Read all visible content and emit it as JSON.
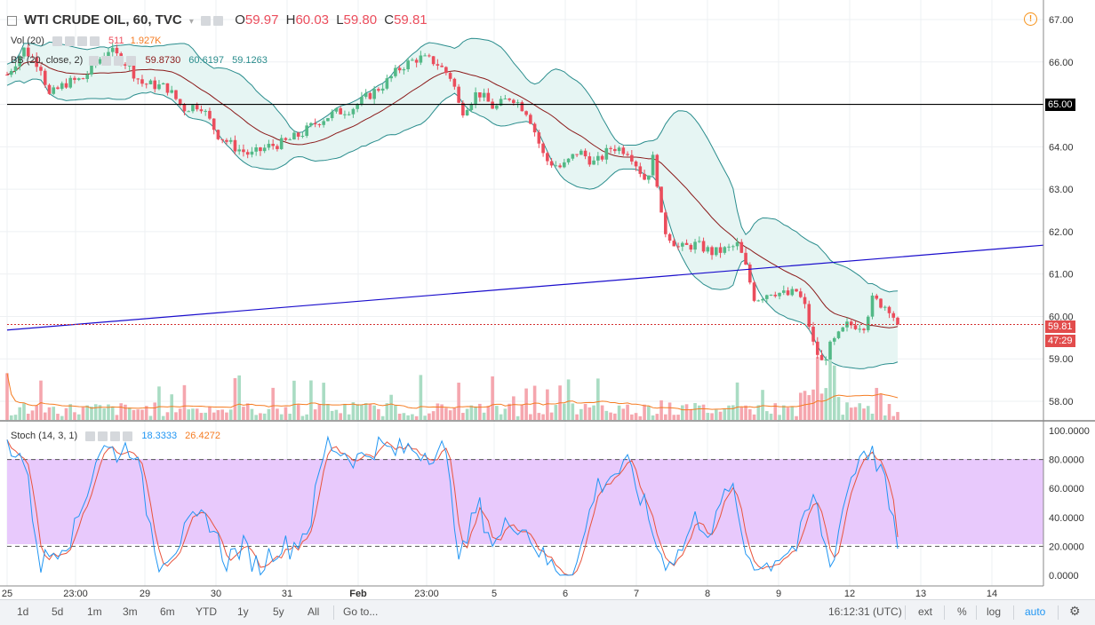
{
  "header": {
    "symbol": "WTI CRUDE OIL, 60, TVC",
    "o_label": "O",
    "o_value": "59.97",
    "h_label": "H",
    "h_value": "60.03",
    "l_label": "L",
    "l_value": "59.80",
    "c_label": "C",
    "c_value": "59.81"
  },
  "indicators": {
    "vol_label": "Vol (20)",
    "vol_value1": "511",
    "vol_value2": "1.927K",
    "bb_label": "BB (20, close, 2)",
    "bb_mid": "59.8730",
    "bb_upper": "60.6197",
    "bb_lower": "59.1263",
    "stoch_label": "Stoch (14, 3, 1)",
    "stoch_k": "18.3333",
    "stoch_d": "26.4272"
  },
  "colors": {
    "up": "#53b987",
    "down": "#eb4d5c",
    "bb_mid": "#8b1a1a",
    "bb_band": "#2a8d8d",
    "bb_fill": "#e6f5f3",
    "vol_up": "#a9dcc3",
    "vol_down": "#f5a6ae",
    "vol_ma": "#f57c22",
    "stoch_k": "#2196f3",
    "stoch_d": "#e8543d",
    "stoch_zone": "#e8c9fc",
    "trend": "#1a0dcc",
    "resistance": "#000000",
    "price_line": "#d32f2f"
  },
  "chart_data": {
    "type": "candlestick",
    "interval": "60",
    "price_axis": {
      "ticks": [
        "67.00",
        "66.00",
        "65.00",
        "64.00",
        "63.00",
        "62.00",
        "61.00",
        "60.00",
        "59.00",
        "58.00"
      ],
      "ylim": [
        57.6,
        67.2
      ]
    },
    "stoch_axis": {
      "ticks": [
        "100.0000",
        "80.0000",
        "60.0000",
        "40.0000",
        "20.0000",
        "0.0000"
      ],
      "ylim": [
        -4,
        104
      ],
      "band": [
        20,
        80
      ]
    },
    "time_axis": [
      "25",
      "23:00",
      "29",
      "30",
      "31",
      "Feb",
      "23:00",
      "5",
      "6",
      "7",
      "8",
      "9",
      "12",
      "13",
      "14"
    ],
    "last_price": "59.81",
    "countdown": "47:29",
    "horizontal_level": {
      "price": 65.0,
      "label": "65.00"
    },
    "trendline": {
      "start_price": 59.68,
      "end_price": 61.68
    },
    "close_path": [
      {
        "t": 0,
        "p": 65.7
      },
      {
        "t": 2,
        "p": 66.3
      },
      {
        "t": 4,
        "p": 65.9
      },
      {
        "t": 5,
        "p": 65.2
      },
      {
        "t": 7,
        "p": 65.5
      },
      {
        "t": 9,
        "p": 65.6
      },
      {
        "t": 12,
        "p": 66.3
      },
      {
        "t": 14,
        "p": 66.0
      },
      {
        "t": 16,
        "p": 65.5
      },
      {
        "t": 19,
        "p": 65.4
      },
      {
        "t": 21,
        "p": 64.9
      },
      {
        "t": 23,
        "p": 65.0
      },
      {
        "t": 25,
        "p": 64.3
      },
      {
        "t": 27,
        "p": 64.0
      },
      {
        "t": 29,
        "p": 63.8
      },
      {
        "t": 31,
        "p": 64.0
      },
      {
        "t": 33,
        "p": 64.1
      },
      {
        "t": 35,
        "p": 64.3
      },
      {
        "t": 37,
        "p": 64.6
      },
      {
        "t": 39,
        "p": 64.8
      },
      {
        "t": 41,
        "p": 64.9
      },
      {
        "t": 43,
        "p": 65.2
      },
      {
        "t": 45,
        "p": 65.5
      },
      {
        "t": 47,
        "p": 65.9
      },
      {
        "t": 49,
        "p": 66.1
      },
      {
        "t": 51,
        "p": 66.0
      },
      {
        "t": 53,
        "p": 65.6
      },
      {
        "t": 54,
        "p": 64.8
      },
      {
        "t": 56,
        "p": 65.3
      },
      {
        "t": 58,
        "p": 64.9
      },
      {
        "t": 60,
        "p": 65.2
      },
      {
        "t": 62,
        "p": 64.8
      },
      {
        "t": 64,
        "p": 63.7
      },
      {
        "t": 66,
        "p": 63.5
      },
      {
        "t": 68,
        "p": 63.9
      },
      {
        "t": 70,
        "p": 63.6
      },
      {
        "t": 72,
        "p": 64.0
      },
      {
        "t": 74,
        "p": 63.9
      },
      {
        "t": 76,
        "p": 63.2
      },
      {
        "t": 77,
        "p": 63.8
      },
      {
        "t": 78,
        "p": 62.1
      },
      {
        "t": 80,
        "p": 61.6
      },
      {
        "t": 82,
        "p": 61.7
      },
      {
        "t": 84,
        "p": 61.5
      },
      {
        "t": 86,
        "p": 61.6
      },
      {
        "t": 87,
        "p": 61.7
      },
      {
        "t": 88,
        "p": 61.1
      },
      {
        "t": 89,
        "p": 60.4
      },
      {
        "t": 91,
        "p": 60.6
      },
      {
        "t": 93,
        "p": 60.5
      },
      {
        "t": 94,
        "p": 60.6
      },
      {
        "t": 95,
        "p": 60.2
      },
      {
        "t": 96,
        "p": 59.3
      },
      {
        "t": 97,
        "p": 58.9
      },
      {
        "t": 98,
        "p": 59.3
      },
      {
        "t": 100,
        "p": 59.8
      },
      {
        "t": 102,
        "p": 59.8
      },
      {
        "t": 103,
        "p": 60.4
      },
      {
        "t": 105,
        "p": 60.2
      },
      {
        "t": 106,
        "p": 59.81
      }
    ],
    "stoch_path": [
      {
        "t": 0,
        "k": 92
      },
      {
        "t": 2,
        "k": 80
      },
      {
        "t": 4,
        "k": 8
      },
      {
        "t": 6,
        "k": 20
      },
      {
        "t": 8,
        "k": 30
      },
      {
        "t": 11,
        "k": 88
      },
      {
        "t": 13,
        "k": 85
      },
      {
        "t": 15,
        "k": 90
      },
      {
        "t": 18,
        "k": 10
      },
      {
        "t": 20,
        "k": 20
      },
      {
        "t": 22,
        "k": 35
      },
      {
        "t": 24,
        "k": 40
      },
      {
        "t": 26,
        "k": 10
      },
      {
        "t": 28,
        "k": 20
      },
      {
        "t": 30,
        "k": 5
      },
      {
        "t": 32,
        "k": 20
      },
      {
        "t": 34,
        "k": 20
      },
      {
        "t": 36,
        "k": 35
      },
      {
        "t": 38,
        "k": 92
      },
      {
        "t": 40,
        "k": 85
      },
      {
        "t": 42,
        "k": 80
      },
      {
        "t": 44,
        "k": 90
      },
      {
        "t": 46,
        "k": 85
      },
      {
        "t": 48,
        "k": 88
      },
      {
        "t": 50,
        "k": 85
      },
      {
        "t": 52,
        "k": 88
      },
      {
        "t": 54,
        "k": 10
      },
      {
        "t": 56,
        "k": 50
      },
      {
        "t": 58,
        "k": 20
      },
      {
        "t": 60,
        "k": 40
      },
      {
        "t": 62,
        "k": 30
      },
      {
        "t": 64,
        "k": 10
      },
      {
        "t": 66,
        "k": 2
      },
      {
        "t": 68,
        "k": 10
      },
      {
        "t": 70,
        "k": 60
      },
      {
        "t": 72,
        "k": 70
      },
      {
        "t": 74,
        "k": 75
      },
      {
        "t": 76,
        "k": 45
      },
      {
        "t": 78,
        "k": 10
      },
      {
        "t": 80,
        "k": 15
      },
      {
        "t": 82,
        "k": 40
      },
      {
        "t": 84,
        "k": 30
      },
      {
        "t": 86,
        "k": 65
      },
      {
        "t": 88,
        "k": 15
      },
      {
        "t": 90,
        "k": 5
      },
      {
        "t": 92,
        "k": 15
      },
      {
        "t": 94,
        "k": 20
      },
      {
        "t": 96,
        "k": 55
      },
      {
        "t": 98,
        "k": 5
      },
      {
        "t": 100,
        "k": 60
      },
      {
        "t": 102,
        "k": 90
      },
      {
        "t": 104,
        "k": 75
      },
      {
        "t": 106,
        "k": 18
      }
    ]
  },
  "bottom_bar": {
    "ranges": [
      "1d",
      "5d",
      "1m",
      "3m",
      "6m",
      "YTD",
      "1y",
      "5y",
      "All"
    ],
    "goto": "Go to...",
    "time": "16:12:31 (UTC)",
    "ext": "ext",
    "percent": "%",
    "log": "log",
    "auto": "auto",
    "gear_icon": "gear-icon"
  }
}
